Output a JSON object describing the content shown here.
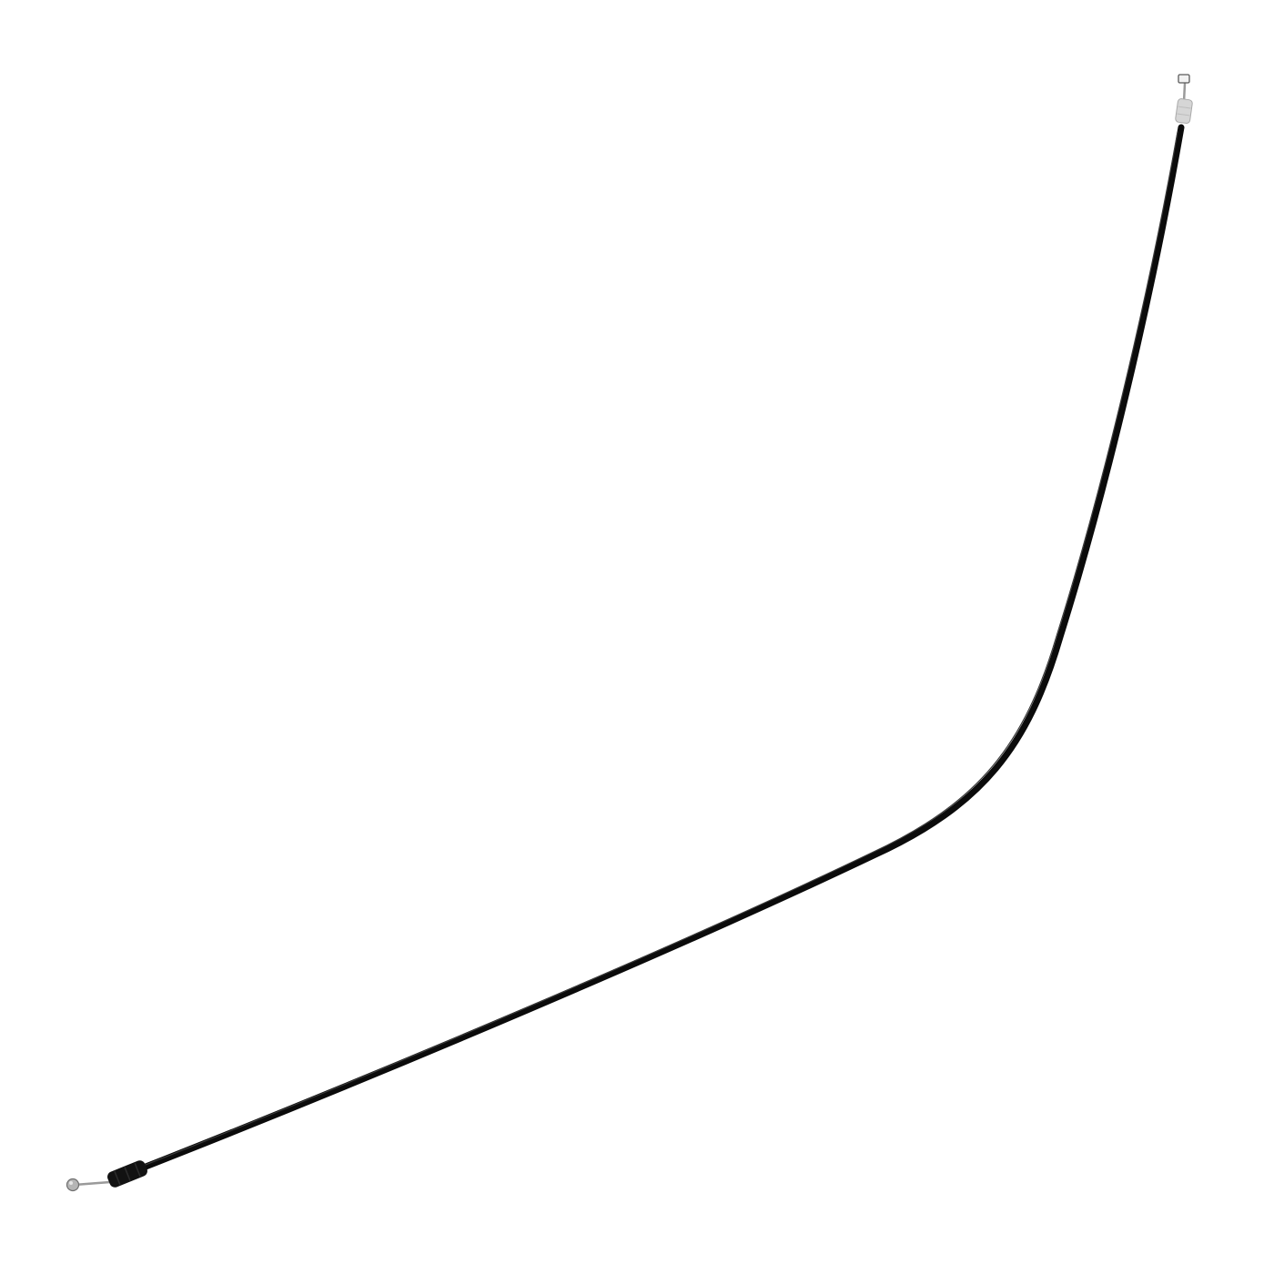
{
  "colors": {
    "background": "#ffffff",
    "cable_sheath": "#0b0b0b",
    "sheath_highlight": "#3a3a3a",
    "ferrule_dark": "#121212",
    "ferrule_light": "#d6d6d6",
    "wire_metal": "#9a9a9a",
    "ball_end": "#b5b5b5"
  },
  "objects": [
    {
      "name": "control-cable",
      "kind": "bowden-cable"
    },
    {
      "name": "cable-ferrule-bottom",
      "kind": "rubber-ferrule"
    },
    {
      "name": "cable-ferrule-top",
      "kind": "plastic-ferrule"
    },
    {
      "name": "ball-end-fitting",
      "kind": "ball-end"
    },
    {
      "name": "barrel-end-fitting",
      "kind": "barrel-end"
    }
  ]
}
